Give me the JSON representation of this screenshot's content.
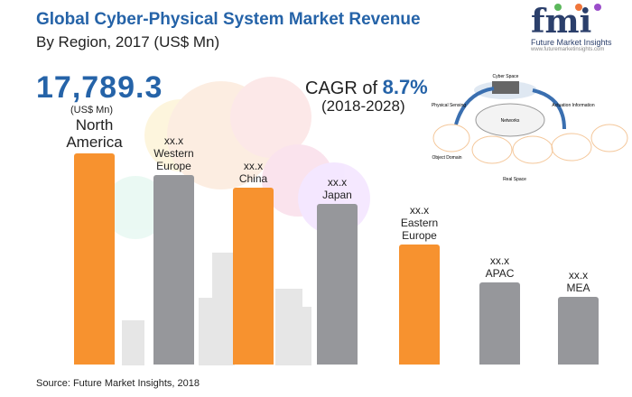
{
  "header": {
    "title": "Global Cyber-Physical System Market Revenue",
    "subtitle": "By Region, 2017 (US$ Mn)"
  },
  "highlight": {
    "value": "17,789.3",
    "unit": "(US$ Mn)"
  },
  "cagr": {
    "prefix": "CAGR of",
    "value": "8.7%",
    "period": "(2018-2028)"
  },
  "logo": {
    "mark": "fmi",
    "name": "Future Market Insights",
    "url_text": "www.futuremarketinsights.com"
  },
  "diagram": {
    "labels": [
      "Cyber Space",
      "Physical Sensing",
      "Networks",
      "Actuation Information",
      "Object Domain",
      "Real Space"
    ]
  },
  "source": "Source: Future Market Insights, 2018",
  "colors": {
    "orange": "#f7922f",
    "gray": "#96979b",
    "blue": "#2563a8"
  },
  "chart_data": {
    "type": "bar",
    "title": "Global Cyber-Physical System Market Revenue",
    "subtitle": "By Region, 2017 (US$ Mn)",
    "categories": [
      "North America",
      "Western Europe",
      "China",
      "Japan",
      "Eastern Europe",
      "APAC",
      "MEA"
    ],
    "label_lines": [
      [
        "North",
        "America"
      ],
      [
        "Western",
        "Europe"
      ],
      [
        "China"
      ],
      [
        "Japan"
      ],
      [
        "Eastern",
        "Europe"
      ],
      [
        "APAC"
      ],
      [
        "MEA"
      ]
    ],
    "value_labels": [
      "",
      "xx.x",
      "xx.x",
      "xx.x",
      "xx.x",
      "xx.x",
      "xx.x"
    ],
    "values": [
      17789.3,
      16000,
      14900,
      13500,
      10100,
      6900,
      5700
    ],
    "bar_colors": [
      "orange",
      "gray",
      "orange",
      "gray",
      "orange",
      "gray",
      "gray"
    ],
    "ylim": [
      0,
      17789.3
    ],
    "grid": false,
    "axes_visible": false
  }
}
